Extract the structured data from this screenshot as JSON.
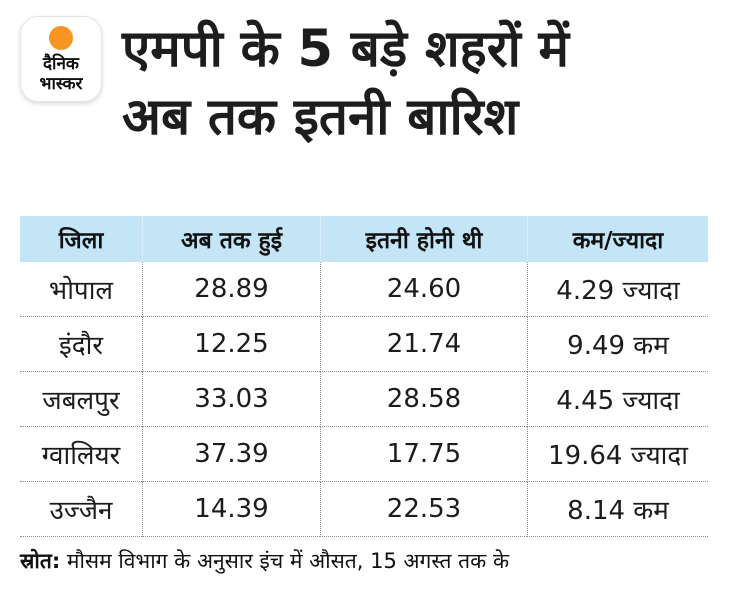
{
  "logo": {
    "line1": "दैनिक",
    "line2": "भास्कर"
  },
  "title": {
    "line1": "एमपी के 5 बड़े शहरों में",
    "line2": "अब तक इतनी बारिश"
  },
  "colors": {
    "header_bg": "#c3e5f6",
    "logo_orange": "#f79522",
    "divider_gray": "#8f8f8f",
    "text": "#1d1d1d"
  },
  "table": {
    "columns": [
      "जिला",
      "अब तक हुई",
      "इतनी होनी थी",
      "कम/ज्यादा"
    ],
    "rows": [
      {
        "district": "भोपाल",
        "so_far": "28.89",
        "expected": "24.60",
        "diff": "4.29 ज्यादा"
      },
      {
        "district": "इंदौर",
        "so_far": "12.25",
        "expected": "21.74",
        "diff": "9.49 कम"
      },
      {
        "district": "जबलपुर",
        "so_far": "33.03",
        "expected": "28.58",
        "diff": "4.45 ज्यादा"
      },
      {
        "district": "ग्वालियर",
        "so_far": "37.39",
        "expected": "17.75",
        "diff": "19.64 ज्यादा"
      },
      {
        "district": "उज्जैन",
        "so_far": "14.39",
        "expected": "22.53",
        "diff": "8.14 कम"
      }
    ]
  },
  "footer": {
    "source_label": "स्रोत:",
    "source_text": " मौसम विभाग के अनुसार इंच में औसत, 15 अगस्त तक के"
  },
  "chart_data": {
    "type": "table",
    "title": "एमपी के 5 बड़े शहरों में अब तक इतनी बारिश",
    "columns": [
      "जिला",
      "अब तक हुई",
      "इतनी होनी थी",
      "कम/ज्यादा"
    ],
    "rows": [
      [
        "भोपाल",
        28.89,
        24.6,
        "4.29 ज्यादा"
      ],
      [
        "इंदौर",
        12.25,
        21.74,
        "9.49 कम"
      ],
      [
        "जबलपुर",
        33.03,
        28.58,
        "4.45 ज्यादा"
      ],
      [
        "ग्वालियर",
        37.39,
        17.75,
        "19.64 ज्यादा"
      ],
      [
        "उज्जैन",
        14.39,
        22.53,
        "8.14 कम"
      ]
    ],
    "units": "inches (average)",
    "note": "स्रोत: मौसम विभाग के अनुसार इंच में औसत, 15 अगस्त तक के"
  }
}
